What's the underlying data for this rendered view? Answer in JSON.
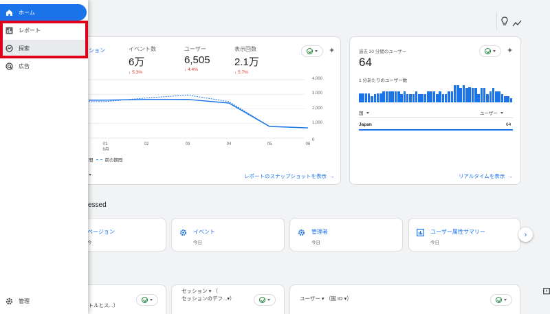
{
  "sidebar": {
    "items": [
      {
        "label": "ホーム",
        "icon": "home-icon"
      },
      {
        "label": "レポート",
        "icon": "bar-chart-icon"
      },
      {
        "label": "探索",
        "icon": "explore-icon"
      },
      {
        "label": "広告",
        "icon": "ads-icon"
      }
    ],
    "admin_label": "管理"
  },
  "overview_card": {
    "tab_partial": "ション",
    "metrics": [
      {
        "label": "イベント数",
        "value": "6万",
        "delta": "5.3%"
      },
      {
        "label": "ユーザー",
        "value": "6,505",
        "delta": "4.4%"
      },
      {
        "label": "表示回数",
        "value": "2.1万",
        "delta": "5.7%"
      }
    ],
    "y_ticks": [
      "4,000",
      "3,000",
      "2,000",
      "1,000",
      "0"
    ],
    "x_ticks": [
      "01",
      "02",
      "03",
      "04",
      "05",
      "06"
    ],
    "x_month": "8月",
    "legend_current": "間",
    "legend_previous": "前の期間",
    "link": "レポートのスナップショットを表示"
  },
  "realtime_card": {
    "title": "過去 30 分間のユーザー",
    "value": "64",
    "per_minute_label": "1 分あたりのユーザー数",
    "col_country": "国",
    "col_users": "ユーザー",
    "row_country": "Japan",
    "row_value": "64",
    "link": "リアルタイムを表示"
  },
  "chart_data": {
    "type": "line",
    "x": [
      "01",
      "02",
      "03",
      "04",
      "05",
      "06"
    ],
    "ylim": [
      0,
      4000
    ],
    "series": [
      {
        "name": "",
        "values": [
          2600,
          2650,
          2650,
          2400,
          800,
          700
        ]
      },
      {
        "name": "前の期間",
        "values": [
          2500,
          2750,
          2950,
          2500,
          800,
          700
        ]
      }
    ]
  },
  "realtime_bars": [
    9,
    9,
    9,
    9,
    6,
    8,
    9,
    9,
    11,
    11,
    11,
    11,
    11,
    11,
    8,
    11,
    8,
    8,
    8,
    11,
    8,
    8,
    8,
    11,
    11,
    11,
    8,
    11,
    8,
    8,
    11,
    11,
    17,
    17,
    14,
    17,
    14,
    15,
    14,
    14,
    8,
    14,
    14,
    8,
    11,
    14,
    11,
    11,
    8,
    6,
    6,
    4
  ],
  "recent": {
    "title": "ccessed",
    "items": [
      {
        "title": "ページョン",
        "sub": "今"
      },
      {
        "title": "イベント",
        "sub": "今日"
      },
      {
        "title": "管理者",
        "sub": "今日"
      },
      {
        "title": "ユーザー属性サマリー",
        "sub": "今日"
      }
    ]
  },
  "bottom_cards": [
    {
      "line1": "く",
      "line2": "イトルとス...）"
    },
    {
      "line1": "セッション ▾ （",
      "line2": "セッションのデフ...▾）"
    },
    {
      "line1": "ユーザー ▾ （国 ID ▾）",
      "line2": ""
    }
  ],
  "colors": {
    "accent": "#1a73e8",
    "negative": "#d93025",
    "highlight_border": "#e0001b"
  }
}
